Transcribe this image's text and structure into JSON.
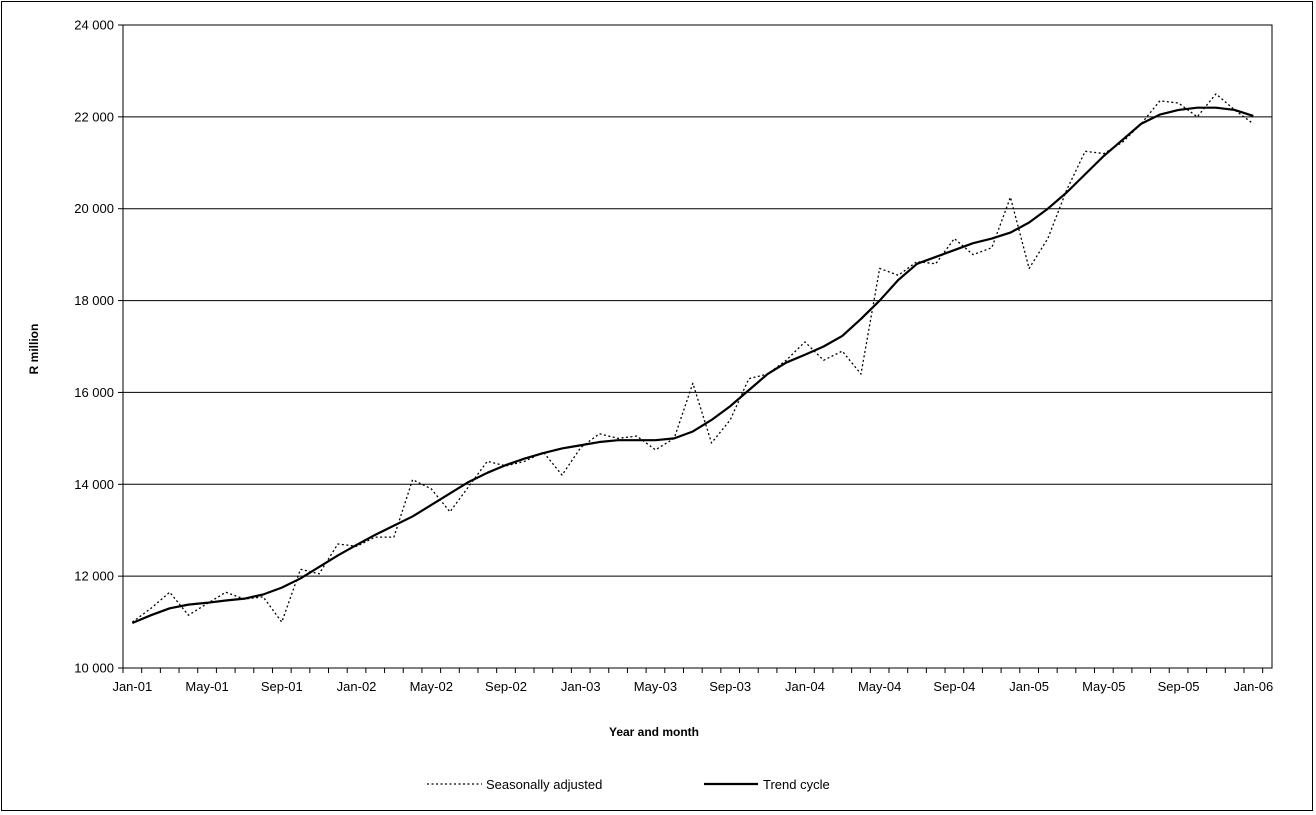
{
  "chart_data": {
    "type": "line",
    "title": "",
    "xlabel": "Year and month",
    "ylabel": "R million",
    "ylim": [
      10000,
      24000
    ],
    "yticks": [
      10000,
      12000,
      14000,
      16000,
      18000,
      20000,
      22000,
      24000
    ],
    "ytick_labels": [
      "10 000",
      "12 000",
      "14 000",
      "16 000",
      "18 000",
      "20 000",
      "22 000",
      "24 000"
    ],
    "xtick_labels": [
      "Jan-01",
      "May-01",
      "Sep-01",
      "Jan-02",
      "May-02",
      "Sep-02",
      "Jan-03",
      "May-03",
      "Sep-03",
      "Jan-04",
      "May-04",
      "Sep-04",
      "Jan-05",
      "May-05",
      "Sep-05",
      "Jan-06"
    ],
    "x": [
      "Jan-01",
      "Feb-01",
      "Mar-01",
      "Apr-01",
      "May-01",
      "Jun-01",
      "Jul-01",
      "Aug-01",
      "Sep-01",
      "Oct-01",
      "Nov-01",
      "Dec-01",
      "Jan-02",
      "Feb-02",
      "Mar-02",
      "Apr-02",
      "May-02",
      "Jun-02",
      "Jul-02",
      "Aug-02",
      "Sep-02",
      "Oct-02",
      "Nov-02",
      "Dec-02",
      "Jan-03",
      "Feb-03",
      "Mar-03",
      "Apr-03",
      "May-03",
      "Jun-03",
      "Jul-03",
      "Aug-03",
      "Sep-03",
      "Oct-03",
      "Nov-03",
      "Dec-03",
      "Jan-04",
      "Feb-04",
      "Mar-04",
      "Apr-04",
      "May-04",
      "Jun-04",
      "Jul-04",
      "Aug-04",
      "Sep-04",
      "Oct-04",
      "Nov-04",
      "Dec-04",
      "Jan-05",
      "Feb-05",
      "Mar-05",
      "Apr-05",
      "May-05",
      "Jun-05",
      "Jul-05",
      "Aug-05",
      "Sep-05",
      "Oct-05",
      "Nov-05",
      "Dec-05",
      "Jan-06"
    ],
    "grid": "horizontal",
    "legend_position": "bottom",
    "series": [
      {
        "name": "Seasonally adjusted",
        "style": "dotted",
        "color": "#000000",
        "values": [
          11000,
          11300,
          11650,
          11150,
          11400,
          11650,
          11500,
          11550,
          11000,
          12150,
          12050,
          12700,
          12650,
          12850,
          12850,
          14100,
          13900,
          13400,
          13950,
          14500,
          14400,
          14500,
          14700,
          14200,
          14800,
          15100,
          15000,
          15050,
          14750,
          15000,
          16200,
          14900,
          15400,
          16300,
          16400,
          16700,
          17100,
          16700,
          16900,
          16400,
          18700,
          18550,
          18850,
          18800,
          19350,
          19000,
          19150,
          20250,
          18700,
          19350,
          20400,
          21250,
          21200,
          21450,
          21850,
          22350,
          22300,
          22000,
          22500,
          22150,
          21850
        ]
      },
      {
        "name": "Trend cycle",
        "style": "solid",
        "color": "#000000",
        "values": [
          10980,
          11150,
          11300,
          11380,
          11420,
          11470,
          11510,
          11600,
          11750,
          11950,
          12200,
          12450,
          12680,
          12900,
          13100,
          13300,
          13550,
          13800,
          14050,
          14250,
          14420,
          14560,
          14680,
          14780,
          14850,
          14920,
          14960,
          14960,
          14960,
          15000,
          15150,
          15400,
          15700,
          16050,
          16400,
          16650,
          16820,
          17000,
          17230,
          17600,
          18000,
          18450,
          18800,
          18950,
          19100,
          19250,
          19350,
          19480,
          19700,
          20000,
          20350,
          20750,
          21150,
          21500,
          21850,
          22050,
          22150,
          22200,
          22200,
          22150,
          22020
        ]
      }
    ]
  }
}
